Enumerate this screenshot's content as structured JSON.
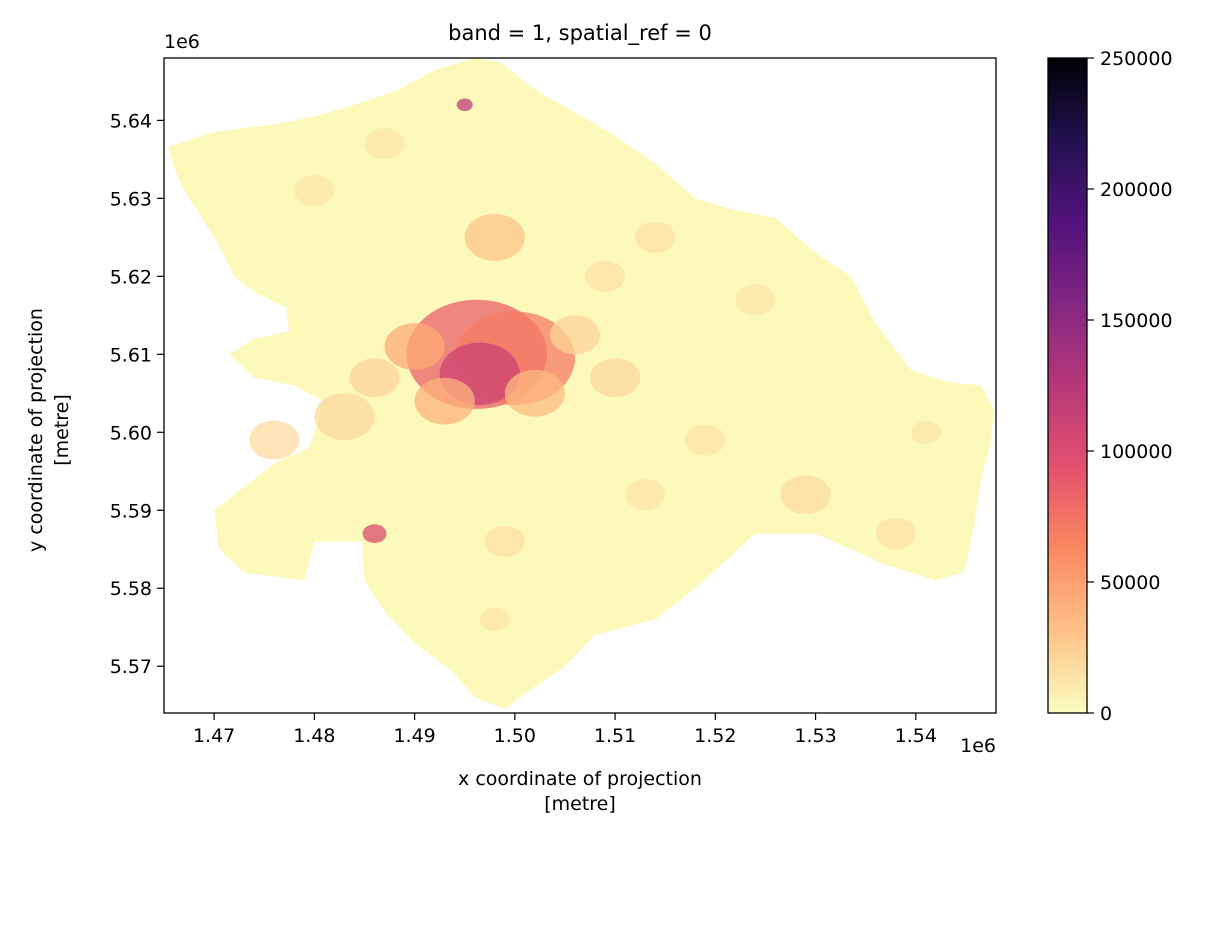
{
  "chart_data": {
    "type": "heatmap",
    "title": "band = 1, spatial_ref = 0",
    "xlabel_line1": "x coordinate of projection",
    "xlabel_line2": "[metre]",
    "ylabel_line1": "y coordinate of projection",
    "ylabel_line2": "[metre]",
    "x_offset_label": "1e6",
    "y_offset_label": "1e6",
    "xlim": [
      1.465,
      1.548
    ],
    "ylim": [
      5.564,
      5.648
    ],
    "xticks": [
      1.47,
      1.48,
      1.49,
      1.5,
      1.51,
      1.52,
      1.53,
      1.54
    ],
    "xtick_labels": [
      "1.47",
      "1.48",
      "1.49",
      "1.50",
      "1.51",
      "1.52",
      "1.53",
      "1.54"
    ],
    "yticks": [
      5.57,
      5.58,
      5.59,
      5.6,
      5.61,
      5.62,
      5.63,
      5.64
    ],
    "ytick_labels": [
      "5.57",
      "5.58",
      "5.59",
      "5.60",
      "5.61",
      "5.62",
      "5.63",
      "5.64"
    ],
    "colormap": "magma_r",
    "colorbar": {
      "min": 0,
      "max": 250000,
      "ticks": [
        0,
        50000,
        100000,
        150000,
        200000,
        250000
      ],
      "tick_labels": [
        "0",
        "50000",
        "100000",
        "150000",
        "200000",
        "250000"
      ],
      "colors": [
        "#fcfdbf",
        "#fec287",
        "#fc8961",
        "#e3506d",
        "#b73779",
        "#822681",
        "#51127c",
        "#221150",
        "#000004"
      ]
    },
    "grid": false,
    "region_boundary": [
      [
        1.4654,
        5.6366
      ],
      [
        1.4675,
        5.6375
      ],
      [
        1.47,
        5.6385
      ],
      [
        1.476,
        5.6395
      ],
      [
        1.48,
        5.6405
      ],
      [
        1.484,
        5.642
      ],
      [
        1.4885,
        5.644
      ],
      [
        1.492,
        5.6465
      ],
      [
        1.496,
        5.648
      ],
      [
        1.4985,
        5.6475
      ],
      [
        1.502,
        5.644
      ],
      [
        1.506,
        5.641
      ],
      [
        1.51,
        5.638
      ],
      [
        1.514,
        5.6345
      ],
      [
        1.518,
        5.63
      ],
      [
        1.522,
        5.6285
      ],
      [
        1.526,
        5.6275
      ],
      [
        1.53,
        5.623
      ],
      [
        1.5335,
        5.62
      ],
      [
        1.536,
        5.614
      ],
      [
        1.5395,
        5.608
      ],
      [
        1.543,
        5.6065
      ],
      [
        1.5465,
        5.606
      ],
      [
        1.5478,
        5.603
      ],
      [
        1.5475,
        5.599
      ],
      [
        1.5465,
        5.594
      ],
      [
        1.5458,
        5.588
      ],
      [
        1.5452,
        5.584
      ],
      [
        1.5447,
        5.582
      ],
      [
        1.542,
        5.581
      ],
      [
        1.537,
        5.583
      ],
      [
        1.53,
        5.587
      ],
      [
        1.524,
        5.587
      ],
      [
        1.518,
        5.58
      ],
      [
        1.514,
        5.576
      ],
      [
        1.508,
        5.574
      ],
      [
        1.505,
        5.57
      ],
      [
        1.501,
        5.5665
      ],
      [
        1.499,
        5.5645
      ],
      [
        1.496,
        5.566
      ],
      [
        1.494,
        5.569
      ],
      [
        1.49,
        5.573
      ],
      [
        1.487,
        5.577
      ],
      [
        1.485,
        5.581
      ],
      [
        1.4848,
        5.586
      ],
      [
        1.48,
        5.586
      ],
      [
        1.479,
        5.581
      ],
      [
        1.473,
        5.582
      ],
      [
        1.4705,
        5.585
      ],
      [
        1.47,
        5.59
      ],
      [
        1.473,
        5.593
      ],
      [
        1.476,
        5.596
      ],
      [
        1.4795,
        5.598
      ],
      [
        1.481,
        5.604
      ],
      [
        1.478,
        5.606
      ],
      [
        1.474,
        5.607
      ],
      [
        1.4715,
        5.61
      ],
      [
        1.474,
        5.612
      ],
      [
        1.4775,
        5.613
      ],
      [
        1.4772,
        5.616
      ],
      [
        1.474,
        5.618
      ],
      [
        1.472,
        5.62
      ],
      [
        1.4705,
        5.624
      ],
      [
        1.4685,
        5.628
      ],
      [
        1.467,
        5.631
      ],
      [
        1.466,
        5.634
      ]
    ],
    "hotspots": [
      {
        "x": 1.4962,
        "y": 5.61,
        "radius": 0.007,
        "value": 85000
      },
      {
        "x": 1.5,
        "y": 5.6095,
        "radius": 0.006,
        "value": 70000
      },
      {
        "x": 1.4965,
        "y": 5.6075,
        "radius": 0.004,
        "value": 110000
      },
      {
        "x": 1.49,
        "y": 5.611,
        "radius": 0.003,
        "value": 45000
      },
      {
        "x": 1.493,
        "y": 5.604,
        "radius": 0.003,
        "value": 40000
      },
      {
        "x": 1.502,
        "y": 5.605,
        "radius": 0.003,
        "value": 35000
      },
      {
        "x": 1.486,
        "y": 5.587,
        "radius": 0.0012,
        "value": 100000
      },
      {
        "x": 1.495,
        "y": 5.642,
        "radius": 0.0008,
        "value": 120000
      },
      {
        "x": 1.498,
        "y": 5.625,
        "radius": 0.003,
        "value": 30000
      },
      {
        "x": 1.483,
        "y": 5.602,
        "radius": 0.003,
        "value": 20000
      },
      {
        "x": 1.476,
        "y": 5.599,
        "radius": 0.0025,
        "value": 18000
      },
      {
        "x": 1.486,
        "y": 5.607,
        "radius": 0.0025,
        "value": 22000
      },
      {
        "x": 1.529,
        "y": 5.592,
        "radius": 0.0025,
        "value": 18000
      },
      {
        "x": 1.538,
        "y": 5.587,
        "radius": 0.002,
        "value": 15000
      },
      {
        "x": 1.514,
        "y": 5.625,
        "radius": 0.002,
        "value": 15000
      },
      {
        "x": 1.509,
        "y": 5.62,
        "radius": 0.002,
        "value": 15000
      },
      {
        "x": 1.519,
        "y": 5.599,
        "radius": 0.002,
        "value": 14000
      },
      {
        "x": 1.513,
        "y": 5.592,
        "radius": 0.002,
        "value": 14000
      },
      {
        "x": 1.51,
        "y": 5.607,
        "radius": 0.0025,
        "value": 20000
      },
      {
        "x": 1.506,
        "y": 5.6125,
        "radius": 0.0025,
        "value": 22000
      },
      {
        "x": 1.499,
        "y": 5.586,
        "radius": 0.002,
        "value": 16000
      },
      {
        "x": 1.498,
        "y": 5.576,
        "radius": 0.0015,
        "value": 14000
      },
      {
        "x": 1.48,
        "y": 5.631,
        "radius": 0.002,
        "value": 12000
      },
      {
        "x": 1.487,
        "y": 5.637,
        "radius": 0.002,
        "value": 12000
      },
      {
        "x": 1.524,
        "y": 5.617,
        "radius": 0.002,
        "value": 12000
      },
      {
        "x": 1.541,
        "y": 5.6,
        "radius": 0.0015,
        "value": 12000
      }
    ]
  }
}
